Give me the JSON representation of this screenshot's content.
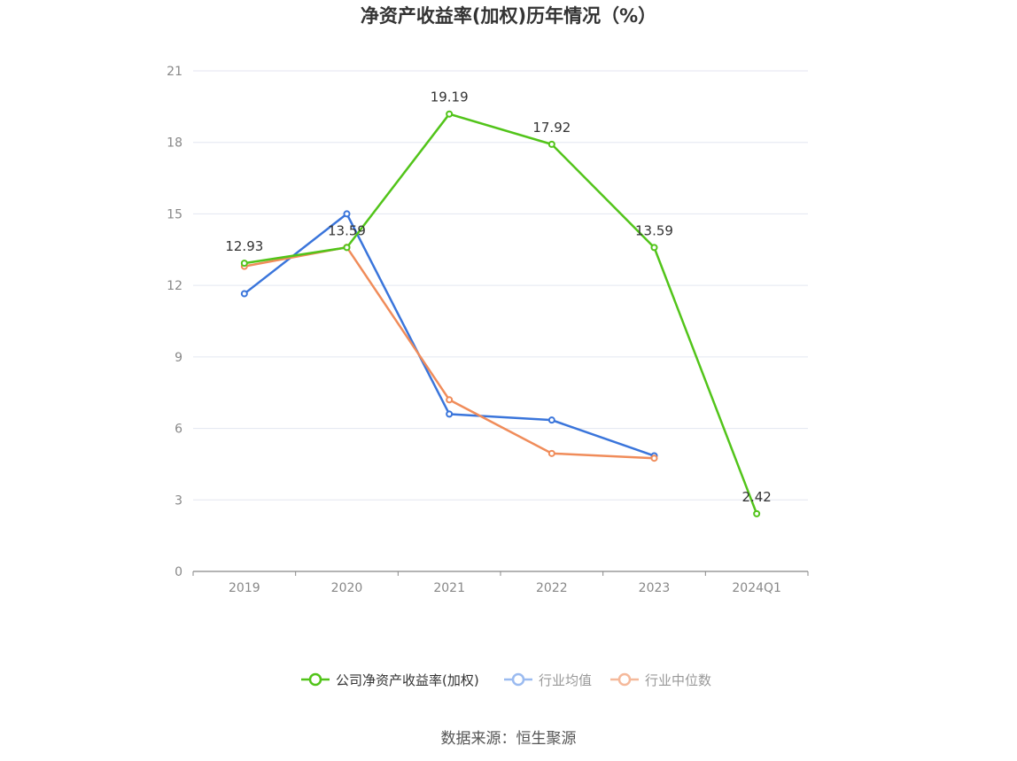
{
  "chart_data": {
    "type": "line",
    "title": "净资产收益率(加权)历年情况（%）",
    "categories": [
      "2019",
      "2020",
      "2021",
      "2022",
      "2023",
      "2024Q1"
    ],
    "ylim": [
      0,
      21
    ],
    "yticks": [
      "0",
      "3",
      "6",
      "9",
      "12",
      "15",
      "18",
      "21"
    ],
    "grid": true,
    "legend_position": "bottom",
    "series": [
      {
        "name": "公司净资产收益率(加权)",
        "color": "#52c41a",
        "values": [
          12.93,
          13.59,
          19.19,
          17.92,
          13.59,
          2.42
        ],
        "labels": [
          "12.93",
          "13.59",
          "19.19",
          "17.92",
          "13.59",
          "2.42"
        ]
      },
      {
        "name": "行业均值",
        "color": "#3a75db",
        "values": [
          11.65,
          15.0,
          6.6,
          6.35,
          4.85,
          null
        ]
      },
      {
        "name": "行业中位数",
        "color": "#f08c5a",
        "values": [
          12.8,
          13.6,
          7.2,
          4.95,
          4.75,
          null
        ]
      }
    ],
    "source": "数据来源：恒生聚源"
  }
}
